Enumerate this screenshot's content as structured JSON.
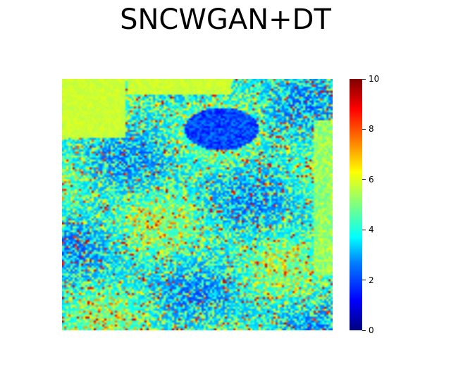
{
  "chart_data": {
    "type": "heatmap",
    "title": "SNCWGAN+DT",
    "colormap": "jet",
    "grid": false,
    "axes_visible": false,
    "value_range": [
      0,
      10
    ],
    "colorbar": {
      "placement": "right",
      "ticks": [
        0,
        2,
        4,
        6,
        8,
        10
      ],
      "tick_labels": [
        "0",
        "2",
        "4",
        "6",
        "8",
        "10"
      ]
    },
    "matrix_size": [
      128,
      128
    ],
    "value_distribution_note_free": true
  }
}
